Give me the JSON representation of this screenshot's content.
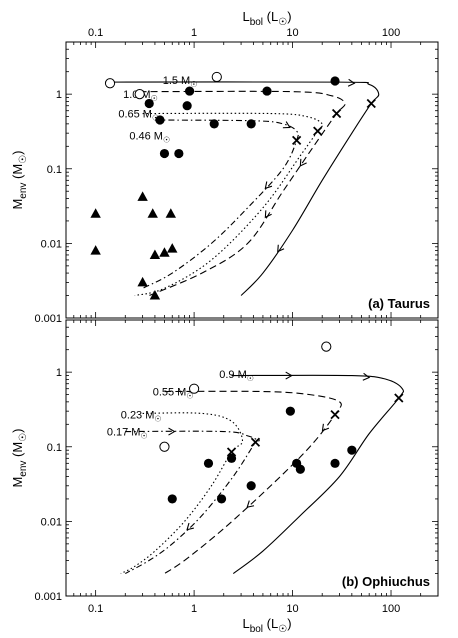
{
  "figure": {
    "top_axis_label": "L",
    "top_axis_label_sub": "bol",
    "top_axis_label_unit": "(L",
    "bottom_axis_label": "L",
    "bottom_axis_label_sub": "bol",
    "bottom_axis_label_unit": "(L",
    "x_ticks": [
      {
        "v": 0.1,
        "label": "0.1"
      },
      {
        "v": 1,
        "label": "1"
      },
      {
        "v": 10,
        "label": "10"
      },
      {
        "v": 100,
        "label": "100"
      }
    ],
    "y_ticks": [
      {
        "v": 0.001,
        "label": "0.001"
      },
      {
        "v": 0.01,
        "label": "0.01"
      },
      {
        "v": 0.1,
        "label": "0.1"
      },
      {
        "v": 1,
        "label": "1"
      }
    ]
  },
  "chart_data": [
    {
      "type": "scatter",
      "title": "(a) Taurus",
      "xlabel": "Lbol (L☉)",
      "ylabel": "Menv (M☉)",
      "xscale": "log",
      "yscale": "log",
      "xlim": [
        0.05,
        300
      ],
      "ylim": [
        0.001,
        5
      ],
      "ylabel_main": "M",
      "ylabel_sub": "env",
      "ylabel_unit": "(M",
      "series": [
        {
          "marker": "filled-circle",
          "points": [
            [
              27,
              1.5
            ],
            [
              0.9,
              1.1
            ],
            [
              5.5,
              1.1
            ],
            [
              0.35,
              0.75
            ],
            [
              0.85,
              0.7
            ],
            [
              0.45,
              0.45
            ],
            [
              1.6,
              0.4
            ],
            [
              3.8,
              0.4
            ],
            [
              0.5,
              0.16
            ],
            [
              0.7,
              0.16
            ]
          ]
        },
        {
          "marker": "open-circle",
          "points": [
            [
              0.14,
              1.4
            ],
            [
              1.7,
              1.7
            ],
            [
              0.28,
              1.0
            ]
          ]
        },
        {
          "marker": "filled-triangle",
          "points": [
            [
              0.1,
              0.025
            ],
            [
              0.1,
              0.008
            ],
            [
              0.3,
              0.042
            ],
            [
              0.38,
              0.025
            ],
            [
              0.58,
              0.025
            ],
            [
              0.4,
              0.007
            ],
            [
              0.5,
              0.0075
            ],
            [
              0.6,
              0.0085
            ],
            [
              0.3,
              0.003
            ],
            [
              0.4,
              0.002
            ]
          ]
        },
        {
          "marker": "cross",
          "points": [
            [
              63,
              0.75
            ],
            [
              28,
              0.55
            ],
            [
              18,
              0.32
            ],
            [
              11,
              0.24
            ]
          ]
        }
      ],
      "tracks": [
        {
          "label": "1.5 M",
          "label_sub": "☉",
          "style": "solid",
          "points": [
            [
              0.14,
              1.45
            ],
            [
              30,
              1.45
            ],
            [
              60,
              1.35
            ],
            [
              75,
              1.0
            ],
            [
              63,
              0.75
            ],
            [
              40,
              0.3
            ],
            [
              20,
              0.07
            ],
            [
              10,
              0.015
            ],
            [
              5,
              0.004
            ],
            [
              3,
              0.002
            ]
          ],
          "arrows": [
            6,
            40
          ]
        },
        {
          "label": "1.0 M",
          "label_sub": "☉",
          "style": "dashed",
          "points": [
            [
              0.28,
              1.08
            ],
            [
              10,
              1.08
            ],
            [
              25,
              0.95
            ],
            [
              34,
              0.75
            ],
            [
              28,
              0.55
            ],
            [
              18,
              0.24
            ],
            [
              8,
              0.05
            ],
            [
              3.5,
              0.01
            ],
            [
              1.2,
              0.004
            ],
            [
              0.35,
              0.002
            ]
          ],
          "arrows": [
            6,
            10
          ]
        },
        {
          "label": "0.65 M",
          "label_sub": "☉",
          "style": "dotted",
          "points": [
            [
              0.3,
              0.55
            ],
            [
              6,
              0.55
            ],
            [
              14,
              0.5
            ],
            [
              20,
              0.4
            ],
            [
              18,
              0.32
            ],
            [
              12,
              0.15
            ],
            [
              5,
              0.03
            ],
            [
              1.5,
              0.006
            ],
            [
              0.5,
              0.0025
            ],
            [
              0.25,
              0.002
            ]
          ],
          "arrows": []
        },
        {
          "label": "0.46 M",
          "label_sub": "☉",
          "style": "dashdot",
          "points": [
            [
              0.4,
              0.45
            ],
            [
              4,
              0.44
            ],
            [
              8,
              0.4
            ],
            [
              11,
              0.32
            ],
            [
              11,
              0.24
            ],
            [
              8,
              0.1
            ],
            [
              3.5,
              0.03
            ],
            [
              1.5,
              0.01
            ],
            [
              0.6,
              0.004
            ],
            [
              0.3,
              0.0025
            ]
          ],
          "arrows": [
            8,
            3.5
          ]
        }
      ]
    },
    {
      "type": "scatter",
      "title": "(b) Ophiuchus",
      "xlabel": "Lbol (L☉)",
      "ylabel": "Menv (M☉)",
      "xscale": "log",
      "yscale": "log",
      "xlim": [
        0.05,
        300
      ],
      "ylim": [
        0.001,
        5
      ],
      "ylabel_main": "M",
      "ylabel_sub": "env",
      "ylabel_unit": "(M",
      "series": [
        {
          "marker": "filled-circle",
          "points": [
            [
              1.4,
              0.06
            ],
            [
              2.4,
              0.07
            ],
            [
              0.6,
              0.02
            ],
            [
              1.9,
              0.02
            ],
            [
              3.8,
              0.03
            ],
            [
              9.5,
              0.3
            ],
            [
              11,
              0.06
            ],
            [
              12,
              0.05
            ],
            [
              27,
              0.06
            ],
            [
              40,
              0.09
            ]
          ]
        },
        {
          "marker": "open-circle",
          "points": [
            [
              22,
              2.2
            ],
            [
              1.0,
              0.6
            ],
            [
              0.5,
              0.1
            ]
          ]
        },
        {
          "marker": "cross",
          "points": [
            [
              120,
              0.45
            ],
            [
              27,
              0.27
            ],
            [
              2.4,
              0.085
            ],
            [
              4.2,
              0.115
            ]
          ]
        }
      ],
      "tracks": [
        {
          "label": "0.9 M",
          "label_sub": "☉",
          "style": "solid",
          "points": [
            [
              2.4,
              0.9
            ],
            [
              40,
              0.9
            ],
            [
              90,
              0.8
            ],
            [
              130,
              0.6
            ],
            [
              120,
              0.45
            ],
            [
              60,
              0.15
            ],
            [
              30,
              0.04
            ],
            [
              12,
              0.012
            ],
            [
              5,
              0.004
            ],
            [
              2.5,
              0.002
            ]
          ],
          "arrows": [
            10,
            60
          ]
        },
        {
          "label": "0.55 M",
          "label_sub": "☉",
          "style": "dashed",
          "points": [
            [
              0.5,
              0.55
            ],
            [
              5,
              0.55
            ],
            [
              15,
              0.5
            ],
            [
              30,
              0.4
            ],
            [
              27,
              0.27
            ],
            [
              15,
              0.1
            ],
            [
              6,
              0.03
            ],
            [
              2,
              0.008
            ],
            [
              0.8,
              0.003
            ],
            [
              0.5,
              0.002
            ]
          ],
          "arrows": [
            4,
            15
          ]
        },
        {
          "label": "0.23 M",
          "label_sub": "☉",
          "style": "dotted",
          "points": [
            [
              0.3,
              0.28
            ],
            [
              1.2,
              0.28
            ],
            [
              2.4,
              0.22
            ],
            [
              3.1,
              0.12
            ],
            [
              2.4,
              0.085
            ],
            [
              1.5,
              0.03
            ],
            [
              0.8,
              0.01
            ],
            [
              0.4,
              0.004
            ],
            [
              0.25,
              0.0025
            ],
            [
              0.18,
              0.002
            ]
          ],
          "arrows": []
        },
        {
          "label": "0.17 M",
          "label_sub": "☉",
          "style": "dashdot",
          "points": [
            [
              0.2,
              0.16
            ],
            [
              2,
              0.16
            ],
            [
              3.5,
              0.14
            ],
            [
              4.5,
              0.12
            ],
            [
              4.2,
              0.115
            ],
            [
              2.5,
              0.04
            ],
            [
              1.2,
              0.012
            ],
            [
              0.6,
              0.005
            ],
            [
              0.35,
              0.003
            ],
            [
              0.2,
              0.002
            ]
          ],
          "arrows": [
            1.2,
            0.6
          ]
        }
      ]
    }
  ]
}
